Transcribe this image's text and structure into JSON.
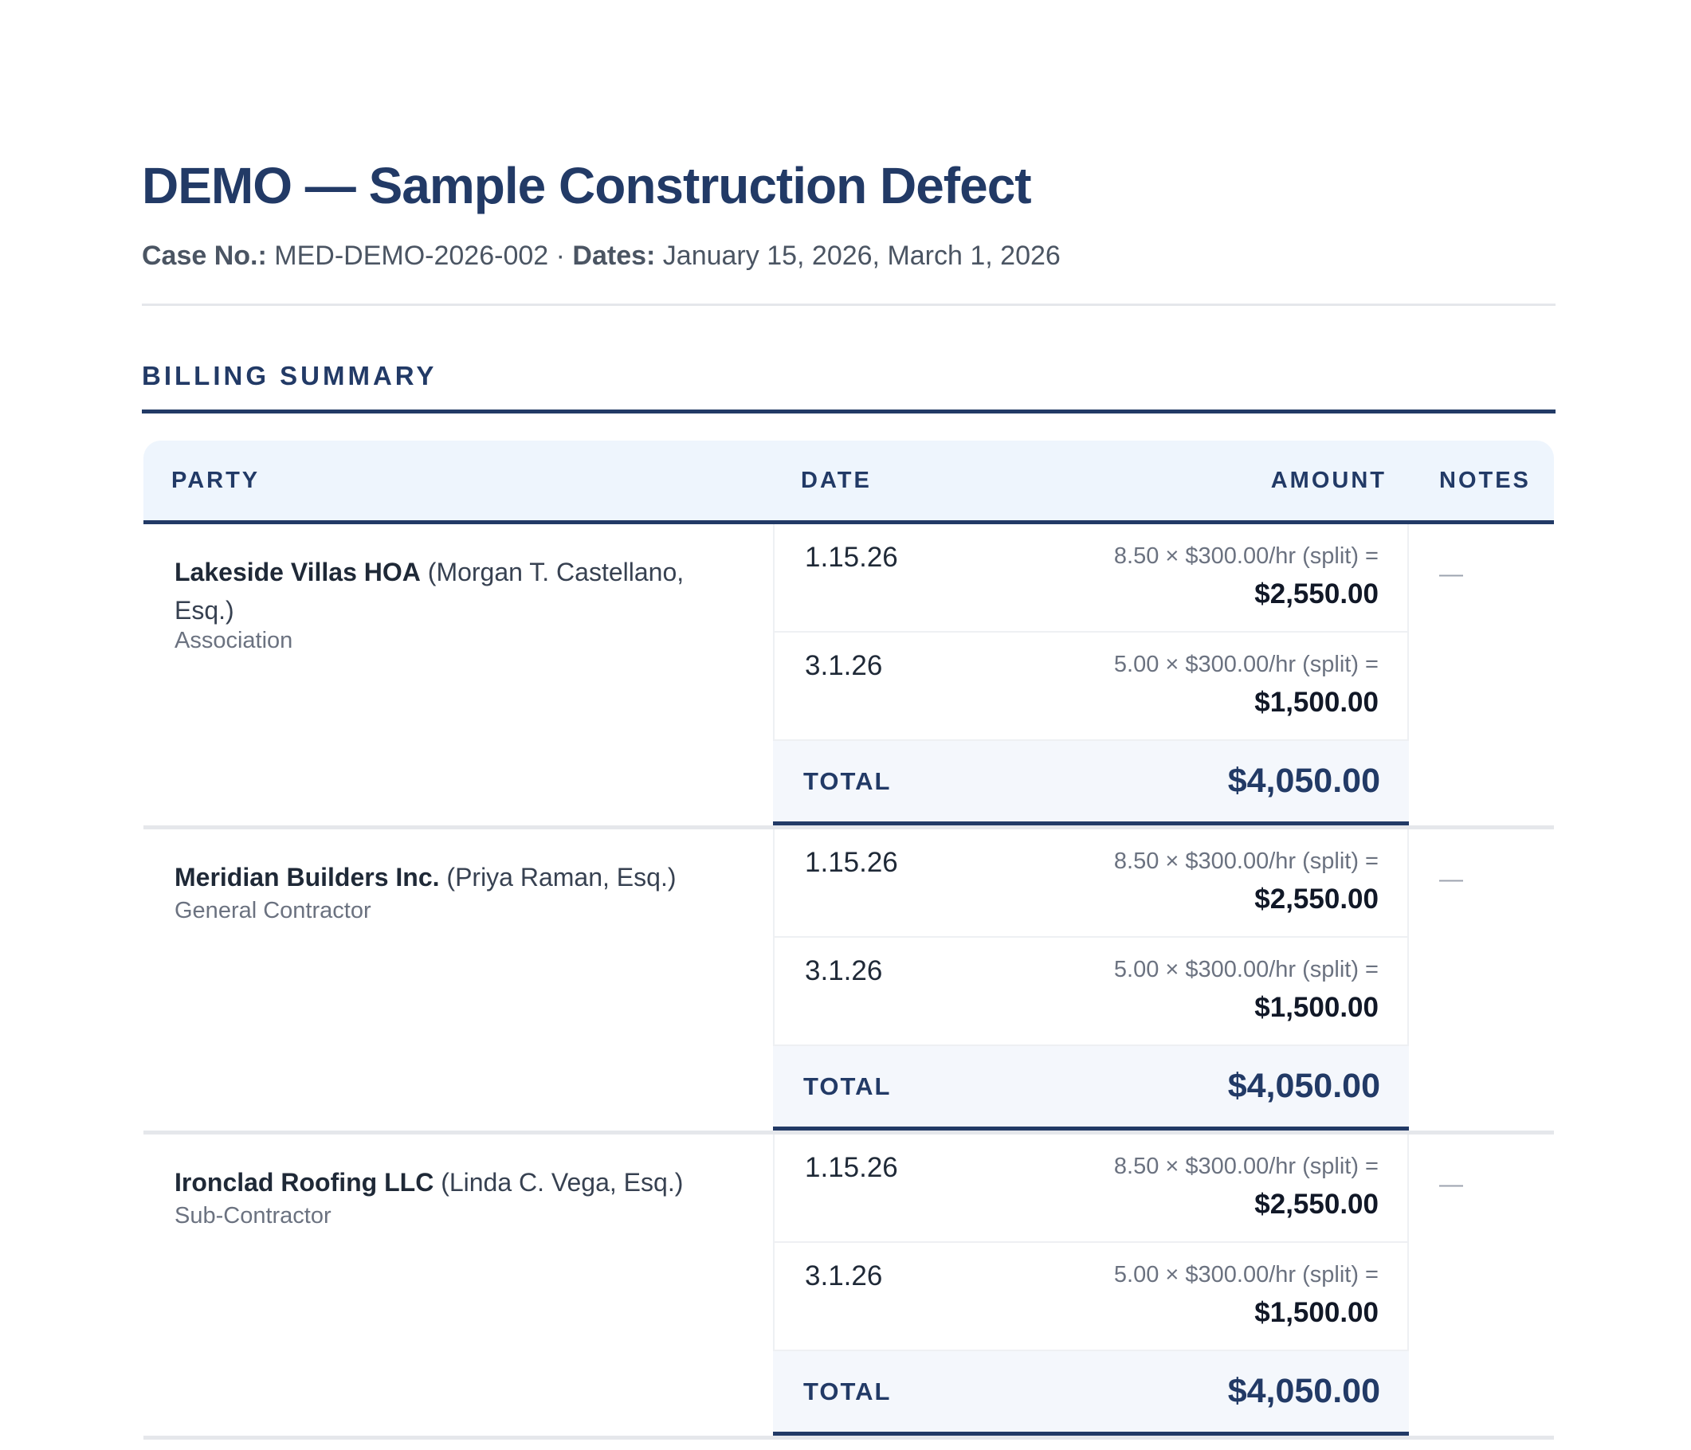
{
  "header": {
    "title": "DEMO — Sample Construction Defect",
    "case_label": "Case No.:",
    "case_value": "MED-DEMO-2026-002",
    "separator": "·",
    "dates_label": "Dates:",
    "dates_value": "January 15, 2026, March 1, 2026"
  },
  "section": {
    "title": "BILLING SUMMARY"
  },
  "table": {
    "columns": {
      "party": "PARTY",
      "date": "DATE",
      "amount": "AMOUNT",
      "notes": "NOTES"
    },
    "total_label": "TOTAL",
    "rows": [
      {
        "party": "Lakeside Villas HOA",
        "counsel": "(Morgan T. Castellano, Esq.)",
        "role": "Association",
        "entries": [
          {
            "date": "1.15.26",
            "calc": "8.50 × $300.00/hr (split) =",
            "amount": "$2,550.00"
          },
          {
            "date": "3.1.26",
            "calc": "5.00 × $300.00/hr (split) =",
            "amount": "$1,500.00"
          }
        ],
        "total": "$4,050.00",
        "notes": "—"
      },
      {
        "party": "Meridian Builders Inc.",
        "counsel": "(Priya Raman, Esq.)",
        "role": "General Contractor",
        "entries": [
          {
            "date": "1.15.26",
            "calc": "8.50 × $300.00/hr (split) =",
            "amount": "$2,550.00"
          },
          {
            "date": "3.1.26",
            "calc": "5.00 × $300.00/hr (split) =",
            "amount": "$1,500.00"
          }
        ],
        "total": "$4,050.00",
        "notes": "—"
      },
      {
        "party": "Ironclad Roofing LLC",
        "counsel": "(Linda C. Vega, Esq.)",
        "role": "Sub-Contractor",
        "entries": [
          {
            "date": "1.15.26",
            "calc": "8.50 × $300.00/hr (split) =",
            "amount": "$2,550.00"
          },
          {
            "date": "3.1.26",
            "calc": "5.00 × $300.00/hr (split) =",
            "amount": "$1,500.00"
          }
        ],
        "total": "$4,050.00",
        "notes": "—"
      }
    ]
  }
}
